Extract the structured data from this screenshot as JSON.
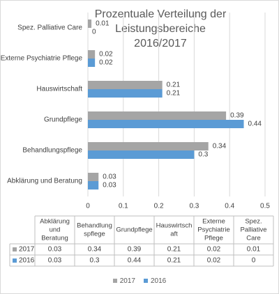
{
  "chart_data": {
    "type": "bar",
    "orientation": "horizontal",
    "title_lines": [
      "Prozentuale Verteilung der Leistungsbereiche",
      "2016/2017"
    ],
    "categories": [
      "Abklärung und Beratung",
      "Behandlungspflege",
      "Grundpflege",
      "Hauswirtschaft",
      "Externe Psychiatrie Pflege",
      "Spez. Palliative Care"
    ],
    "table_headers": [
      [
        "Abklärung",
        "und",
        "Beratung"
      ],
      [
        "Behandlung",
        "spflege"
      ],
      [
        "Grundpflege"
      ],
      [
        "Hauswirtsch",
        "aft"
      ],
      [
        "Externe",
        "Psychiatrie",
        "Pflege"
      ],
      [
        "Spez.",
        "Palliative",
        "Care"
      ]
    ],
    "series": [
      {
        "name": "2017",
        "color": "#a5a5a5",
        "values": [
          0.03,
          0.34,
          0.39,
          0.21,
          0.02,
          0.01
        ]
      },
      {
        "name": "2016",
        "color": "#5b9bd5",
        "values": [
          0.03,
          0.3,
          0.44,
          0.21,
          0.02,
          0
        ]
      }
    ],
    "table_values": [
      [
        "0.03",
        "0.34",
        "0.39",
        "0.21",
        "0.02",
        "0.01"
      ],
      [
        "0.03",
        "0.3",
        "0.44",
        "0.21",
        "0.02",
        "0"
      ]
    ],
    "xlim": [
      0,
      0.5
    ],
    "xticks": [
      "0",
      "0.1",
      "0.2",
      "0.3",
      "0.4",
      "0.5"
    ],
    "legend_position": "bottom",
    "grid": true
  }
}
